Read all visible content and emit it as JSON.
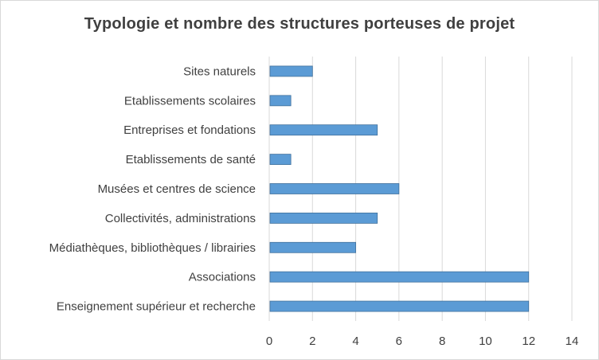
{
  "chart_data": {
    "type": "bar",
    "orientation": "horizontal",
    "title": "Typologie et nombre des structures porteuses de projet",
    "categories": [
      "Sites naturels",
      "Etablissements scolaires",
      "Entreprises et fondations",
      "Etablissements de santé",
      "Musées et centres de science",
      "Collectivités, administrations",
      "Médiathèques, bibliothèques / librairies",
      "Associations",
      "Enseignement supérieur et recherche"
    ],
    "values": [
      2,
      1,
      5,
      1,
      6,
      5,
      4,
      12,
      12
    ],
    "xlim": [
      0,
      14
    ],
    "xticks": [
      "0",
      "2",
      "4",
      "6",
      "8",
      "10",
      "12",
      "14"
    ],
    "grid": "vertical",
    "legend": "none",
    "bar_color": "#5b9bd5",
    "bar_border_color": "#41719c"
  }
}
